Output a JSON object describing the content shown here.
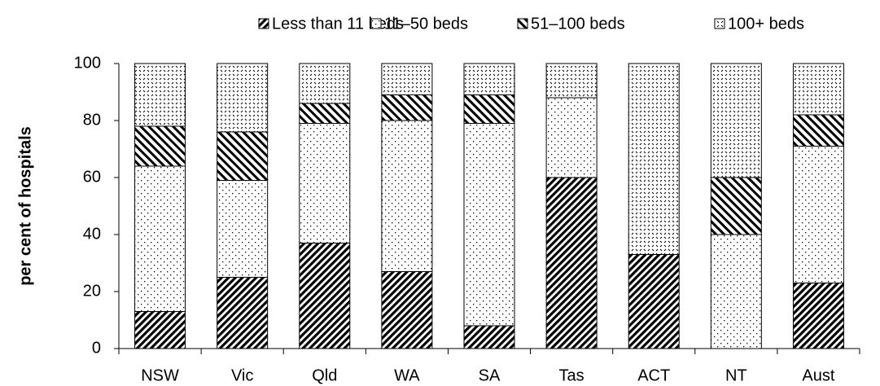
{
  "chart_data": {
    "type": "stacked_bar",
    "y_label": "per cent of hospitals",
    "categories": [
      "NSW",
      "Vic",
      "Qld",
      "WA",
      "SA",
      "Tas",
      "ACT",
      "NT",
      "Aust"
    ],
    "series": [
      {
        "name": "Less than 11 beds",
        "values": [
          13,
          25,
          37,
          27,
          8,
          60,
          33,
          0,
          23
        ]
      },
      {
        "name": "11–50 beds",
        "values": [
          51,
          34,
          42,
          53,
          71,
          28,
          0,
          40,
          48
        ]
      },
      {
        "name": "51–100 beds",
        "values": [
          14,
          17,
          7,
          9,
          10,
          0,
          0,
          20,
          11
        ]
      },
      {
        "name": "100+ beds",
        "values": [
          22,
          24,
          14,
          11,
          11,
          12,
          67,
          40,
          18
        ]
      }
    ],
    "ylim": [
      0,
      100
    ],
    "yticks": [
      0,
      20,
      40,
      60,
      80,
      100
    ],
    "grid": false
  }
}
